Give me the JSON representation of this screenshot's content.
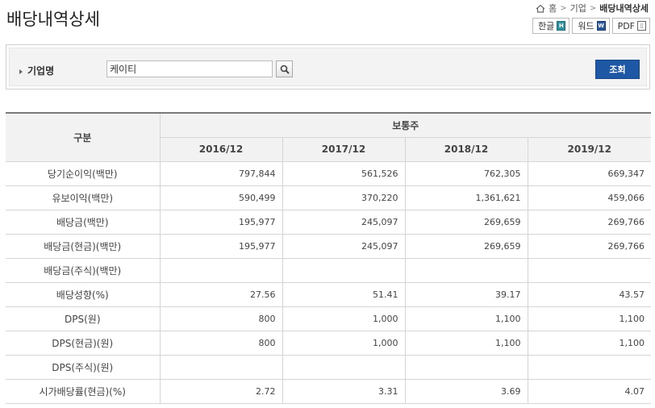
{
  "page": {
    "title": "배당내역상세"
  },
  "breadcrumb": {
    "items": [
      "홈",
      "기업",
      "배당내역상세"
    ]
  },
  "export": {
    "hangul": "한글",
    "word": "워드",
    "pdf": "PDF"
  },
  "search": {
    "label": "기업명",
    "value": "케이티",
    "submit_label": "조회"
  },
  "table": {
    "header_category": "구분",
    "header_group": "보통주",
    "years": [
      "2016/12",
      "2017/12",
      "2018/12",
      "2019/12"
    ],
    "rows": [
      {
        "label": "당기순이익(백만)",
        "values": [
          "797,844",
          "561,526",
          "762,305",
          "669,347"
        ]
      },
      {
        "label": "유보이익(백만)",
        "values": [
          "590,499",
          "370,220",
          "1,361,621",
          "459,066"
        ]
      },
      {
        "label": "배당금(백만)",
        "values": [
          "195,977",
          "245,097",
          "269,659",
          "269,766"
        ]
      },
      {
        "label": "배당금(현금)(백만)",
        "values": [
          "195,977",
          "245,097",
          "269,659",
          "269,766"
        ]
      },
      {
        "label": "배당금(주식)(백만)",
        "values": [
          "",
          "",
          "",
          ""
        ]
      },
      {
        "label": "배당성향(%)",
        "values": [
          "27.56",
          "51.41",
          "39.17",
          "43.57"
        ]
      },
      {
        "label": "DPS(원)",
        "values": [
          "800",
          "1,000",
          "1,100",
          "1,100"
        ]
      },
      {
        "label": "DPS(현금)(원)",
        "values": [
          "800",
          "1,000",
          "1,100",
          "1,100"
        ]
      },
      {
        "label": "DPS(주식)(원)",
        "values": [
          "",
          "",
          "",
          ""
        ]
      },
      {
        "label": "시가배당률(현금)(%)",
        "values": [
          "2.72",
          "3.31",
          "3.69",
          "4.07"
        ]
      }
    ]
  }
}
